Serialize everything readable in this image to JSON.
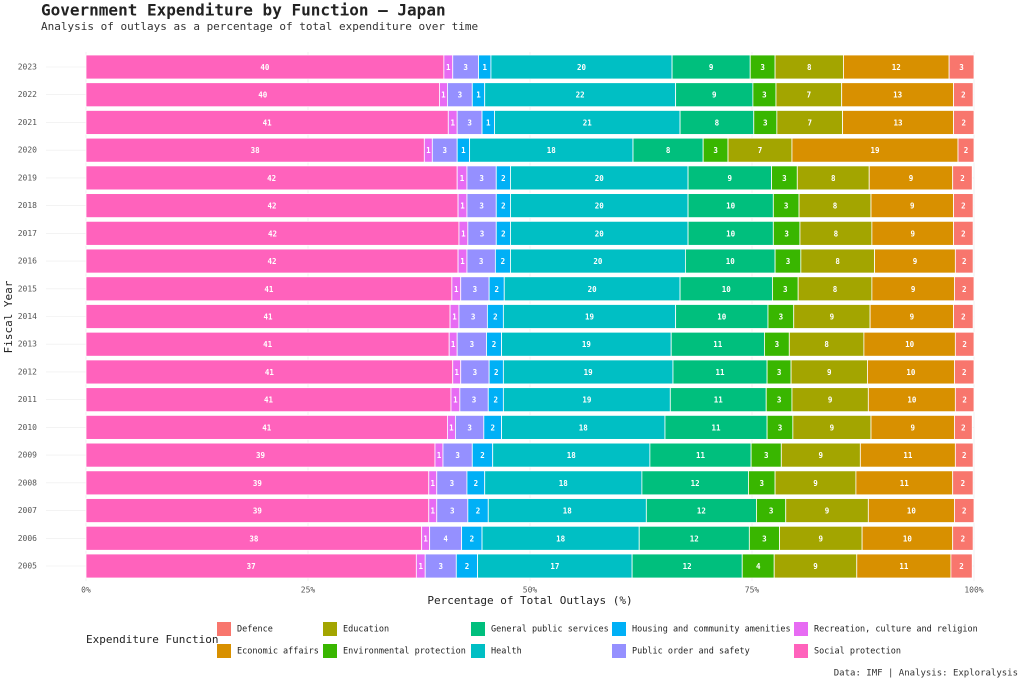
{
  "chart_data": {
    "type": "stacked_bar_horizontal",
    "title": "Government Expenditure by Function — Japan",
    "subtitle": "Analysis of outlays as a percentage of total expenditure over time",
    "x_label": "Percentage of Total Outlays (%)",
    "y_label": "Fiscal Year",
    "legend_title": "Expenditure Function",
    "caption": "Data: IMF | Analysis: Exploralysis",
    "categories": [
      "2023",
      "2022",
      "2021",
      "2020",
      "2019",
      "2018",
      "2017",
      "2016",
      "2015",
      "2014",
      "2013",
      "2012",
      "2011",
      "2010",
      "2009",
      "2008",
      "2007",
      "2006",
      "2005"
    ],
    "xlim": [
      0,
      100
    ],
    "xticks": [
      {
        "value": 0,
        "label": "0%"
      },
      {
        "value": 25,
        "label": "25%"
      },
      {
        "value": 50,
        "label": "50%"
      },
      {
        "value": 75,
        "label": "75%"
      },
      {
        "value": 100,
        "label": "100%"
      }
    ],
    "grid": true,
    "series": [
      {
        "name": "Social protection",
        "color": "#FF62BC",
        "values": [
          40.3,
          39.8,
          40.8,
          38.1,
          41.8,
          41.9,
          42.0,
          41.9,
          41.2,
          41.0,
          40.9,
          41.3,
          41.1,
          40.7,
          39.3,
          38.6,
          38.6,
          37.8,
          37.2
        ],
        "value_labels": [
          "40",
          "40",
          "41",
          "38",
          "42",
          "42",
          "42",
          "42",
          "41",
          "41",
          "41",
          "41",
          "41",
          "41",
          "39",
          "39",
          "39",
          "38",
          "37"
        ]
      },
      {
        "name": "Recreation, culture and religion",
        "color": "#E76BF3",
        "values": [
          1.0,
          0.9,
          1.0,
          0.9,
          1.1,
          1.0,
          1.0,
          1.0,
          1.0,
          1.0,
          0.9,
          0.9,
          1.0,
          0.9,
          0.9,
          0.9,
          0.9,
          0.9,
          1.0
        ],
        "value_labels": [
          "1",
          "1",
          "1",
          "1",
          "1",
          "1",
          "1",
          "1",
          "1",
          "1",
          "1",
          "1",
          "1",
          "1",
          "1",
          "1",
          "1",
          "1",
          "1"
        ]
      },
      {
        "name": "Public order and safety",
        "color": "#9590FF",
        "values": [
          2.9,
          2.8,
          2.8,
          2.8,
          3.3,
          3.3,
          3.2,
          3.2,
          3.2,
          3.2,
          3.3,
          3.2,
          3.2,
          3.2,
          3.3,
          3.4,
          3.5,
          3.6,
          3.5
        ],
        "value_labels": [
          "3",
          "3",
          "3",
          "3",
          "3",
          "3",
          "3",
          "3",
          "3",
          "3",
          "3",
          "3",
          "3",
          "3",
          "3",
          "3",
          "3",
          "4",
          "3"
        ]
      },
      {
        "name": "Housing and community amenities",
        "color": "#00B0F6",
        "values": [
          1.4,
          1.4,
          1.4,
          1.4,
          1.6,
          1.6,
          1.6,
          1.7,
          1.7,
          1.8,
          1.7,
          1.6,
          1.7,
          2.0,
          2.3,
          2.0,
          2.3,
          2.3,
          2.4
        ],
        "value_labels": [
          "1",
          "1",
          "1",
          "1",
          "2",
          "2",
          "2",
          "2",
          "2",
          "2",
          "2",
          "2",
          "2",
          "2",
          "2",
          "2",
          "2",
          "2",
          "2"
        ]
      },
      {
        "name": "Health",
        "color": "#00BFC4",
        "values": [
          20.4,
          21.5,
          20.9,
          18.4,
          20.0,
          20.0,
          20.0,
          19.7,
          19.8,
          19.4,
          19.1,
          19.1,
          18.8,
          18.4,
          17.7,
          17.7,
          17.8,
          17.7,
          17.4
        ],
        "value_labels": [
          "20",
          "22",
          "21",
          "18",
          "20",
          "20",
          "20",
          "20",
          "20",
          "19",
          "19",
          "19",
          "19",
          "18",
          "18",
          "18",
          "18",
          "18",
          "17"
        ]
      },
      {
        "name": "General public services",
        "color": "#00BF7D",
        "values": [
          8.8,
          8.7,
          8.3,
          7.9,
          9.4,
          9.6,
          9.6,
          10.1,
          10.4,
          10.4,
          10.5,
          10.6,
          10.8,
          11.5,
          11.4,
          12.0,
          12.4,
          12.4,
          12.4
        ],
        "value_labels": [
          "9",
          "9",
          "8",
          "8",
          "9",
          "10",
          "10",
          "10",
          "10",
          "10",
          "11",
          "11",
          "11",
          "11",
          "11",
          "12",
          "12",
          "12",
          "12"
        ]
      },
      {
        "name": "Environmental protection",
        "color": "#39B600",
        "values": [
          2.8,
          2.6,
          2.6,
          2.8,
          2.9,
          2.9,
          3.0,
          2.9,
          2.9,
          2.9,
          2.8,
          2.7,
          2.9,
          2.9,
          3.4,
          3.0,
          3.3,
          3.4,
          3.6
        ],
        "value_labels": [
          "3",
          "3",
          "3",
          "3",
          "3",
          "3",
          "3",
          "3",
          "3",
          "3",
          "3",
          "3",
          "3",
          "3",
          "3",
          "3",
          "3",
          "3",
          "4"
        ]
      },
      {
        "name": "Education",
        "color": "#A3A500",
        "values": [
          7.7,
          7.4,
          7.4,
          7.2,
          8.1,
          8.1,
          8.1,
          8.3,
          8.3,
          8.6,
          8.4,
          8.6,
          8.6,
          8.8,
          8.9,
          9.1,
          9.3,
          9.3,
          9.3
        ],
        "value_labels": [
          "8",
          "7",
          "7",
          "7",
          "8",
          "8",
          "8",
          "8",
          "8",
          "9",
          "8",
          "9",
          "9",
          "9",
          "9",
          "9",
          "9",
          "9",
          "9"
        ]
      },
      {
        "name": "Economic affairs",
        "color": "#D89000",
        "values": [
          11.9,
          12.6,
          12.5,
          18.7,
          9.4,
          9.3,
          9.2,
          9.1,
          9.3,
          9.4,
          10.3,
          9.8,
          9.8,
          9.4,
          10.7,
          10.9,
          9.7,
          10.2,
          10.6
        ],
        "value_labels": [
          "12",
          "13",
          "13",
          "19",
          "9",
          "9",
          "9",
          "9",
          "9",
          "9",
          "10",
          "10",
          "10",
          "9",
          "11",
          "11",
          "10",
          "10",
          "11"
        ]
      },
      {
        "name": "Defence",
        "color": "#F8766D",
        "values": [
          2.8,
          2.2,
          2.3,
          1.8,
          2.2,
          2.2,
          2.2,
          2.0,
          2.2,
          2.2,
          2.1,
          2.2,
          2.1,
          2.0,
          2.0,
          2.3,
          2.2,
          2.3,
          2.4
        ],
        "value_labels": [
          "3",
          "2",
          "2",
          "2",
          "2",
          "2",
          "2",
          "2",
          "2",
          "2",
          "2",
          "2",
          "2",
          "2",
          "2",
          "2",
          "2",
          "2",
          "2"
        ]
      }
    ]
  }
}
